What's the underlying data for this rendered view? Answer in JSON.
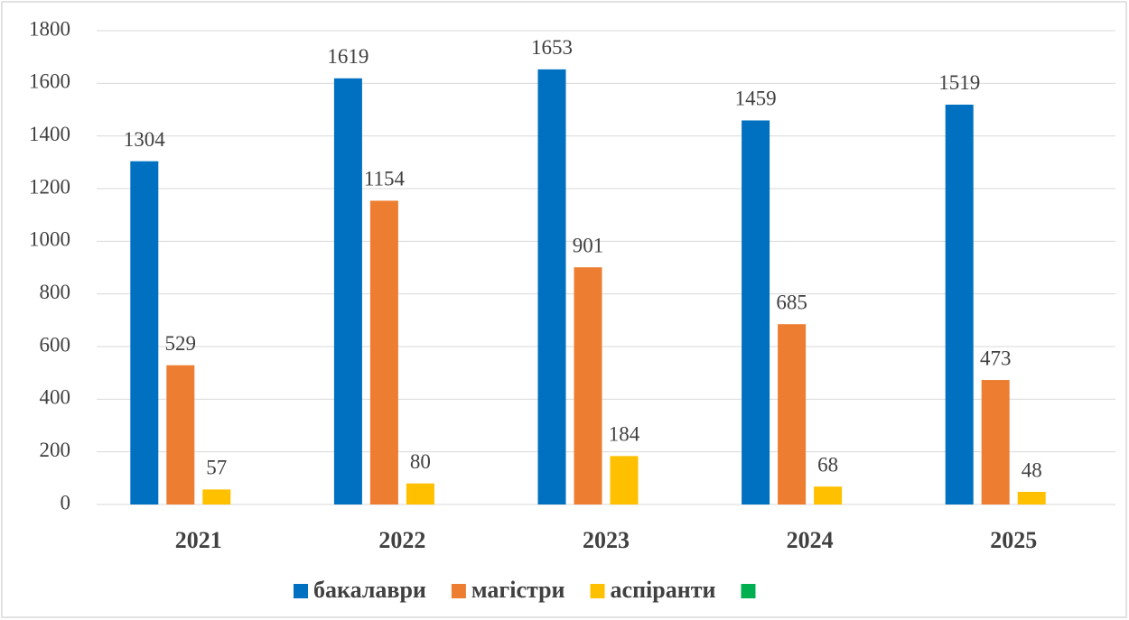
{
  "chart_data": {
    "type": "bar",
    "categories": [
      "2021",
      "2022",
      "2023",
      "2024",
      "2025"
    ],
    "series": [
      {
        "name": "бакалаври",
        "color": "#0070c0",
        "values": [
          1304,
          1619,
          1653,
          1459,
          1519
        ]
      },
      {
        "name": "магістри",
        "color": "#ed7d31",
        "values": [
          529,
          1154,
          901,
          685,
          473
        ]
      },
      {
        "name": "аспіранти",
        "color": "#ffc000",
        "values": [
          57,
          80,
          184,
          68,
          48
        ]
      },
      {
        "name": null,
        "color": "#00b050",
        "values": [
          null,
          null,
          null,
          null,
          null
        ]
      }
    ],
    "ylim": [
      0,
      1800
    ],
    "yticks": [
      0,
      200,
      400,
      600,
      800,
      1000,
      1200,
      1400,
      1600,
      1800
    ],
    "grid": true,
    "legend": "bottom"
  }
}
